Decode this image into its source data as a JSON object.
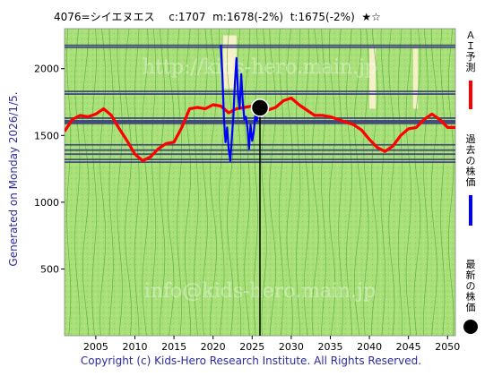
{
  "header": {
    "title": "4076=シイエヌエス　 c:1707  m:1678(-2%)  t:1675(-2%)  ★☆"
  },
  "side_label": "Generated on Monday 2026/1/5.",
  "footer": "Copyright (c) Kids-Hero Research Institute. All Rights Reserved.",
  "watermark": {
    "line1": "http://kids-hero.main.jp",
    "line2": "info@kids-hero.main.jp"
  },
  "legend": [
    {
      "label": "ＡＩ予測",
      "color": "#ff0000",
      "mark": "line"
    },
    {
      "label": "過去の株価",
      "color": "#0000ff",
      "mark": "line"
    },
    {
      "label": "最新の株価",
      "color": "#000000",
      "mark": "dot"
    }
  ],
  "colors": {
    "plot_bg": "#a9e07a",
    "pale_bg": "#f5f0c8",
    "green_line": "#3c9a28",
    "resistance": "#3a3f7a",
    "prediction": "#ff0000",
    "history": "#0000ff",
    "latest": "#000000"
  },
  "chart_data": {
    "type": "line",
    "title": "4076=シイエヌエス　 c:1707  m:1678(-2%)  t:1675(-2%)  ★☆",
    "xlim": [
      2001,
      2051
    ],
    "ylim": [
      0,
      2300
    ],
    "x_ticks": [
      2005,
      2010,
      2015,
      2020,
      2025,
      2030,
      2035,
      2040,
      2045,
      2050
    ],
    "y_ticks": [
      500,
      1000,
      1500,
      2000
    ],
    "grid": false,
    "legend_position": "right, vertical",
    "horizontal_levels": [
      2175,
      2160,
      1830,
      1810,
      1630,
      1610,
      1600,
      1590,
      1430,
      1390,
      1360,
      1320,
      1300
    ],
    "series": [
      {
        "name": "ＡＩ予測",
        "x": [
          2001,
          2002,
          2003,
          2004,
          2005,
          2006,
          2007,
          2008,
          2009,
          2010,
          2011,
          2012,
          2013,
          2014,
          2015,
          2016,
          2017,
          2018,
          2019,
          2020,
          2021,
          2022,
          2023,
          2024,
          2025,
          2026,
          2027,
          2028,
          2029,
          2030,
          2031,
          2032,
          2033,
          2034,
          2035,
          2036,
          2037,
          2038,
          2039,
          2040,
          2041,
          2042,
          2043,
          2044,
          2045,
          2046,
          2047,
          2048,
          2049,
          2050,
          2051
        ],
        "values": [
          1530,
          1620,
          1650,
          1640,
          1660,
          1700,
          1650,
          1550,
          1460,
          1360,
          1310,
          1340,
          1400,
          1440,
          1450,
          1560,
          1700,
          1710,
          1700,
          1730,
          1720,
          1670,
          1700,
          1710,
          1720,
          1710,
          1690,
          1710,
          1760,
          1780,
          1730,
          1690,
          1650,
          1650,
          1640,
          1620,
          1600,
          1580,
          1540,
          1470,
          1410,
          1380,
          1420,
          1500,
          1550,
          1560,
          1620,
          1660,
          1620,
          1560,
          1560
        ]
      },
      {
        "name": "過去の株価",
        "x": [
          2021.0,
          2021.2,
          2021.4,
          2021.6,
          2021.8,
          2022.0,
          2022.2,
          2022.4,
          2022.6,
          2022.8,
          2023.0,
          2023.2,
          2023.4,
          2023.6,
          2023.8,
          2024.0,
          2024.2,
          2024.4,
          2024.6,
          2024.8,
          2025.0,
          2025.2,
          2025.4,
          2025.6,
          2025.8
        ],
        "values": [
          2180,
          1950,
          1620,
          1450,
          1560,
          1400,
          1310,
          1480,
          1650,
          1900,
          2080,
          1800,
          1700,
          1960,
          1750,
          1620,
          1640,
          1560,
          1400,
          1580,
          1460,
          1520,
          1650,
          1610,
          1690
        ]
      }
    ],
    "latest": {
      "x": 2026,
      "y": 1707
    }
  }
}
